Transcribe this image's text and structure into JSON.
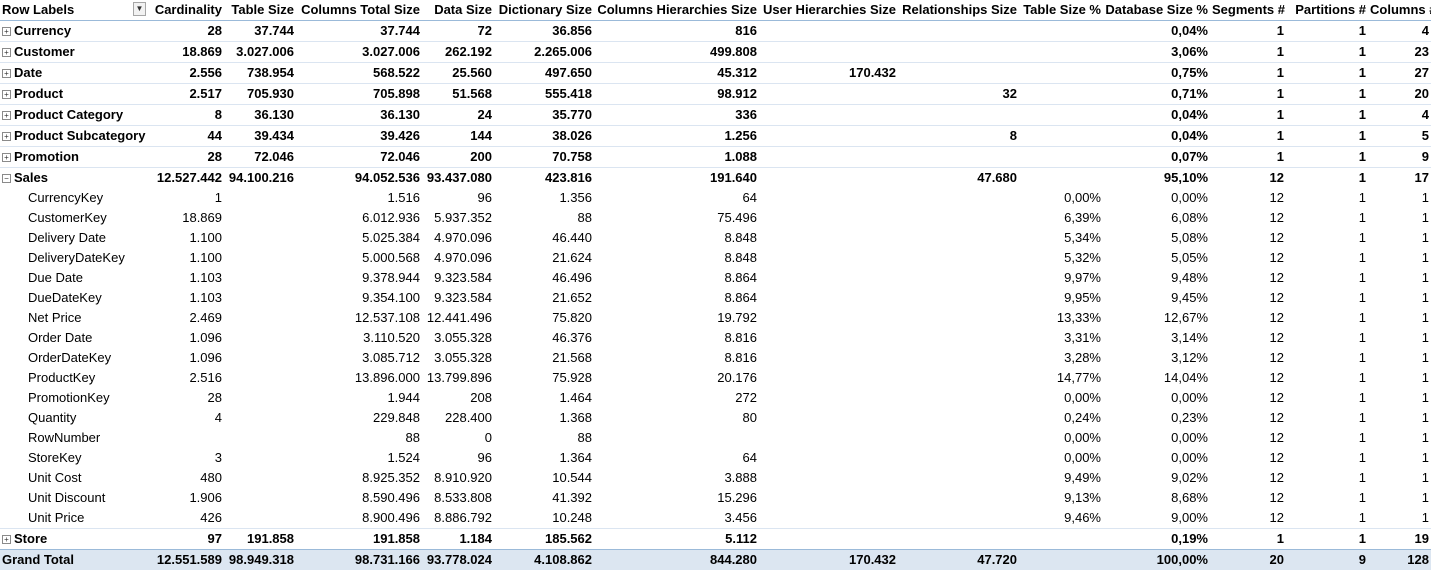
{
  "headers": [
    "Row Labels",
    "Cardinality",
    "Table Size",
    "Columns Total Size",
    "Data Size",
    "Dictionary Size",
    "Columns Hierarchies Size",
    "User Hierarchies Size",
    "Relationships Size",
    "Table Size %",
    "Database Size %",
    "Segments #",
    "Partitions #",
    "Columns #"
  ],
  "rows": [
    {
      "type": "parent",
      "toggle": "plus",
      "label": "Currency",
      "values": [
        "28",
        "37.744",
        "37.744",
        "72",
        "36.856",
        "816",
        "",
        "",
        "",
        "0,04%",
        "1",
        "1",
        "4"
      ]
    },
    {
      "type": "parent",
      "toggle": "plus",
      "label": "Customer",
      "values": [
        "18.869",
        "3.027.006",
        "3.027.006",
        "262.192",
        "2.265.006",
        "499.808",
        "",
        "",
        "",
        "3,06%",
        "1",
        "1",
        "23"
      ]
    },
    {
      "type": "parent",
      "toggle": "plus",
      "label": "Date",
      "values": [
        "2.556",
        "738.954",
        "568.522",
        "25.560",
        "497.650",
        "45.312",
        "170.432",
        "",
        "",
        "0,75%",
        "1",
        "1",
        "27"
      ]
    },
    {
      "type": "parent",
      "toggle": "plus",
      "label": "Product",
      "values": [
        "2.517",
        "705.930",
        "705.898",
        "51.568",
        "555.418",
        "98.912",
        "",
        "32",
        "",
        "0,71%",
        "1",
        "1",
        "20"
      ]
    },
    {
      "type": "parent",
      "toggle": "plus",
      "label": "Product Category",
      "values": [
        "8",
        "36.130",
        "36.130",
        "24",
        "35.770",
        "336",
        "",
        "",
        "",
        "0,04%",
        "1",
        "1",
        "4"
      ]
    },
    {
      "type": "parent",
      "toggle": "plus",
      "label": "Product Subcategory",
      "values": [
        "44",
        "39.434",
        "39.426",
        "144",
        "38.026",
        "1.256",
        "",
        "8",
        "",
        "0,04%",
        "1",
        "1",
        "5"
      ]
    },
    {
      "type": "parent",
      "toggle": "plus",
      "label": "Promotion",
      "values": [
        "28",
        "72.046",
        "72.046",
        "200",
        "70.758",
        "1.088",
        "",
        "",
        "",
        "0,07%",
        "1",
        "1",
        "9"
      ]
    },
    {
      "type": "parent",
      "toggle": "minus",
      "label": "Sales",
      "values": [
        "12.527.442",
        "94.100.216",
        "94.052.536",
        "93.437.080",
        "423.816",
        "191.640",
        "",
        "47.680",
        "",
        "95,10%",
        "12",
        "1",
        "17"
      ]
    },
    {
      "type": "child",
      "label": "CurrencyKey",
      "values": [
        "1",
        "",
        "1.516",
        "96",
        "1.356",
        "64",
        "",
        "",
        "0,00%",
        "0,00%",
        "12",
        "1",
        "1"
      ]
    },
    {
      "type": "child",
      "label": "CustomerKey",
      "values": [
        "18.869",
        "",
        "6.012.936",
        "5.937.352",
        "88",
        "75.496",
        "",
        "",
        "6,39%",
        "6,08%",
        "12",
        "1",
        "1"
      ]
    },
    {
      "type": "child",
      "label": "Delivery Date",
      "values": [
        "1.100",
        "",
        "5.025.384",
        "4.970.096",
        "46.440",
        "8.848",
        "",
        "",
        "5,34%",
        "5,08%",
        "12",
        "1",
        "1"
      ]
    },
    {
      "type": "child",
      "label": "DeliveryDateKey",
      "values": [
        "1.100",
        "",
        "5.000.568",
        "4.970.096",
        "21.624",
        "8.848",
        "",
        "",
        "5,32%",
        "5,05%",
        "12",
        "1",
        "1"
      ]
    },
    {
      "type": "child",
      "label": "Due Date",
      "values": [
        "1.103",
        "",
        "9.378.944",
        "9.323.584",
        "46.496",
        "8.864",
        "",
        "",
        "9,97%",
        "9,48%",
        "12",
        "1",
        "1"
      ]
    },
    {
      "type": "child",
      "label": "DueDateKey",
      "values": [
        "1.103",
        "",
        "9.354.100",
        "9.323.584",
        "21.652",
        "8.864",
        "",
        "",
        "9,95%",
        "9,45%",
        "12",
        "1",
        "1"
      ]
    },
    {
      "type": "child",
      "label": "Net Price",
      "values": [
        "2.469",
        "",
        "12.537.108",
        "12.441.496",
        "75.820",
        "19.792",
        "",
        "",
        "13,33%",
        "12,67%",
        "12",
        "1",
        "1"
      ]
    },
    {
      "type": "child",
      "label": "Order Date",
      "values": [
        "1.096",
        "",
        "3.110.520",
        "3.055.328",
        "46.376",
        "8.816",
        "",
        "",
        "3,31%",
        "3,14%",
        "12",
        "1",
        "1"
      ]
    },
    {
      "type": "child",
      "label": "OrderDateKey",
      "values": [
        "1.096",
        "",
        "3.085.712",
        "3.055.328",
        "21.568",
        "8.816",
        "",
        "",
        "3,28%",
        "3,12%",
        "12",
        "1",
        "1"
      ]
    },
    {
      "type": "child",
      "label": "ProductKey",
      "values": [
        "2.516",
        "",
        "13.896.000",
        "13.799.896",
        "75.928",
        "20.176",
        "",
        "",
        "14,77%",
        "14,04%",
        "12",
        "1",
        "1"
      ]
    },
    {
      "type": "child",
      "label": "PromotionKey",
      "values": [
        "28",
        "",
        "1.944",
        "208",
        "1.464",
        "272",
        "",
        "",
        "0,00%",
        "0,00%",
        "12",
        "1",
        "1"
      ]
    },
    {
      "type": "child",
      "label": "Quantity",
      "values": [
        "4",
        "",
        "229.848",
        "228.400",
        "1.368",
        "80",
        "",
        "",
        "0,24%",
        "0,23%",
        "12",
        "1",
        "1"
      ]
    },
    {
      "type": "child",
      "label": "RowNumber",
      "values": [
        "",
        "",
        "88",
        "0",
        "88",
        "",
        "",
        "",
        "0,00%",
        "0,00%",
        "12",
        "1",
        "1"
      ]
    },
    {
      "type": "child",
      "label": "StoreKey",
      "values": [
        "3",
        "",
        "1.524",
        "96",
        "1.364",
        "64",
        "",
        "",
        "0,00%",
        "0,00%",
        "12",
        "1",
        "1"
      ]
    },
    {
      "type": "child",
      "label": "Unit Cost",
      "values": [
        "480",
        "",
        "8.925.352",
        "8.910.920",
        "10.544",
        "3.888",
        "",
        "",
        "9,49%",
        "9,02%",
        "12",
        "1",
        "1"
      ]
    },
    {
      "type": "child",
      "label": "Unit Discount",
      "values": [
        "1.906",
        "",
        "8.590.496",
        "8.533.808",
        "41.392",
        "15.296",
        "",
        "",
        "9,13%",
        "8,68%",
        "12",
        "1",
        "1"
      ]
    },
    {
      "type": "child",
      "label": "Unit Price",
      "values": [
        "426",
        "",
        "8.900.496",
        "8.886.792",
        "10.248",
        "3.456",
        "",
        "",
        "9,46%",
        "9,00%",
        "12",
        "1",
        "1"
      ]
    },
    {
      "type": "parent",
      "toggle": "plus",
      "label": "Store",
      "values": [
        "97",
        "191.858",
        "191.858",
        "1.184",
        "185.562",
        "5.112",
        "",
        "",
        "",
        "0,19%",
        "1",
        "1",
        "19"
      ]
    },
    {
      "type": "total",
      "label": "Grand Total",
      "values": [
        "12.551.589",
        "98.949.318",
        "98.731.166",
        "93.778.024",
        "4.108.862",
        "844.280",
        "170.432",
        "47.720",
        "",
        "100,00%",
        "20",
        "9",
        "128"
      ]
    }
  ]
}
